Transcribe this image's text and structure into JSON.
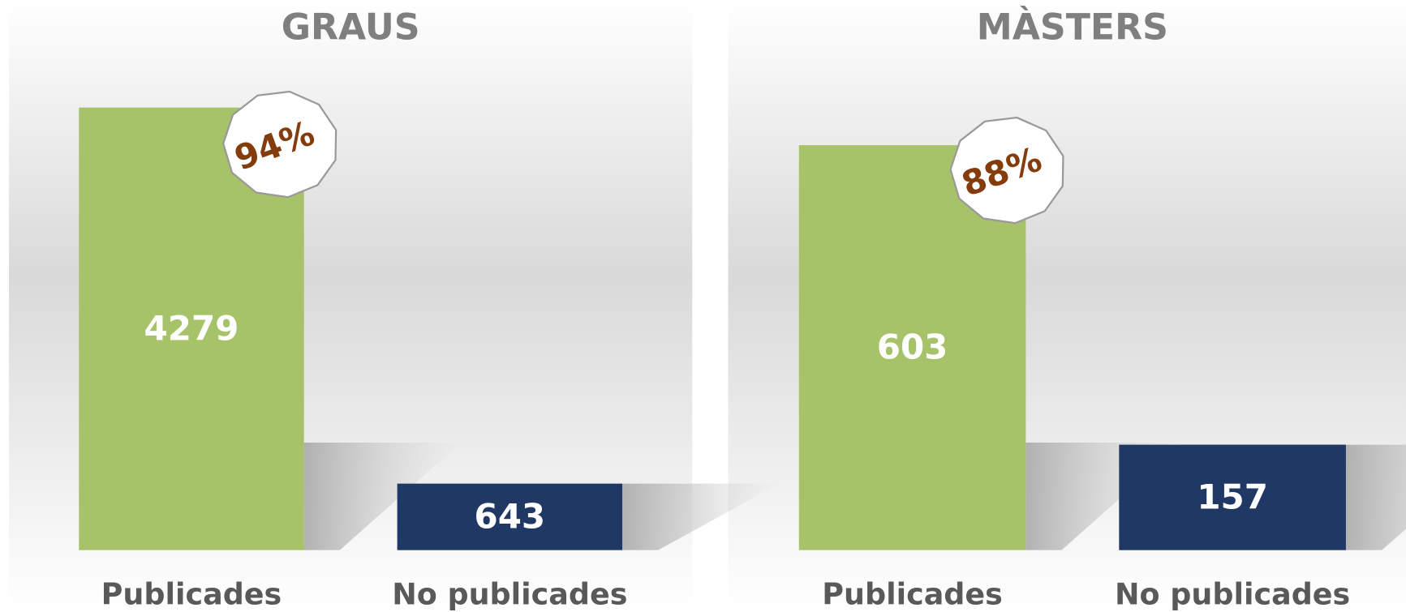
{
  "chart_data": [
    {
      "type": "bar",
      "title": "GRAUS",
      "categories": [
        "Publicades",
        "No publicades"
      ],
      "values": [
        4279,
        643
      ],
      "colors": [
        "#a6c36a",
        "#203864"
      ],
      "annotation": "94%"
    },
    {
      "type": "bar",
      "title": "MÀSTERS",
      "categories": [
        "Publicades",
        "No publicades"
      ],
      "values": [
        603,
        157
      ],
      "colors": [
        "#a6c36a",
        "#203864"
      ],
      "annotation": "88%"
    }
  ]
}
